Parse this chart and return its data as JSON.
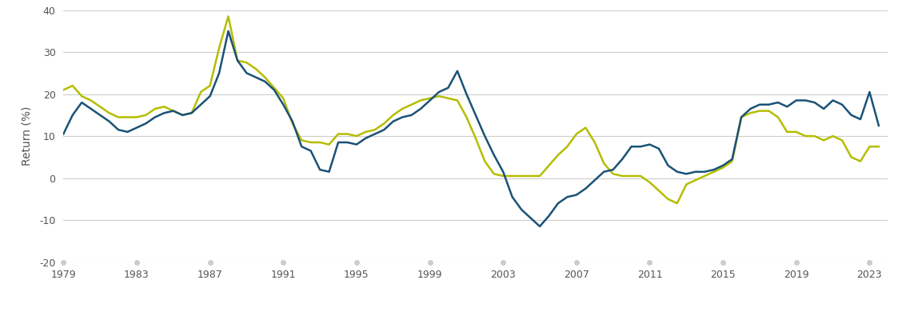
{
  "title": "",
  "ylabel": "Return (%)",
  "ylim": [
    -20,
    40
  ],
  "yticks": [
    -20,
    -10,
    0,
    10,
    20,
    30,
    40
  ],
  "xlim": [
    1979,
    2024
  ],
  "xticks": [
    1979,
    1983,
    1987,
    1991,
    1995,
    1999,
    2003,
    2007,
    2011,
    2015,
    2019,
    2023
  ],
  "growth_color": "#1a5276",
  "value_color": "#b5bd00",
  "background_color": "#ffffff",
  "grid_color": "#cccccc",
  "growth_x": [
    1979.0,
    1979.5,
    1980.0,
    1980.5,
    1981.0,
    1981.5,
    1982.0,
    1982.5,
    1983.0,
    1983.5,
    1984.0,
    1984.5,
    1985.0,
    1985.5,
    1986.0,
    1986.5,
    1987.0,
    1987.5,
    1988.0,
    1988.5,
    1989.0,
    1989.5,
    1990.0,
    1990.5,
    1991.0,
    1991.5,
    1992.0,
    1992.5,
    1993.0,
    1993.5,
    1994.0,
    1994.5,
    1995.0,
    1995.5,
    1996.0,
    1996.5,
    1997.0,
    1997.5,
    1998.0,
    1998.5,
    1999.0,
    1999.5,
    2000.0,
    2000.5,
    2001.0,
    2001.5,
    2002.0,
    2002.5,
    2003.0,
    2003.5,
    2004.0,
    2004.5,
    2005.0,
    2005.5,
    2006.0,
    2006.5,
    2007.0,
    2007.5,
    2008.0,
    2008.5,
    2009.0,
    2009.5,
    2010.0,
    2010.5,
    2011.0,
    2011.5,
    2012.0,
    2012.5,
    2013.0,
    2013.5,
    2014.0,
    2014.5,
    2015.0,
    2015.5,
    2016.0,
    2016.5,
    2017.0,
    2017.5,
    2018.0,
    2018.5,
    2019.0,
    2019.5,
    2020.0,
    2020.5,
    2021.0,
    2021.5,
    2022.0,
    2022.5,
    2023.0,
    2023.5
  ],
  "growth_y": [
    10.5,
    15.0,
    18.0,
    16.5,
    15.0,
    13.5,
    11.5,
    11.0,
    12.0,
    13.0,
    14.5,
    15.5,
    16.0,
    15.0,
    15.5,
    17.5,
    19.5,
    25.0,
    35.0,
    28.0,
    25.0,
    24.0,
    23.0,
    21.0,
    17.5,
    13.5,
    7.5,
    6.5,
    2.0,
    1.5,
    8.5,
    8.5,
    8.0,
    9.5,
    10.5,
    11.5,
    13.5,
    14.5,
    15.0,
    16.5,
    18.5,
    20.5,
    21.5,
    25.5,
    20.0,
    15.0,
    10.0,
    5.5,
    1.5,
    -4.5,
    -7.5,
    -9.5,
    -11.5,
    -9.0,
    -6.0,
    -4.5,
    -4.0,
    -2.5,
    -0.5,
    1.5,
    2.0,
    4.5,
    7.5,
    7.5,
    8.0,
    7.0,
    3.0,
    1.5,
    1.0,
    1.5,
    1.5,
    2.0,
    3.0,
    4.5,
    14.5,
    16.5,
    17.5,
    17.5,
    18.0,
    17.0,
    18.5,
    18.5,
    18.0,
    16.5,
    18.5,
    17.5,
    15.0,
    14.0,
    20.5,
    12.5
  ],
  "value_x": [
    1979.0,
    1979.5,
    1980.0,
    1980.5,
    1981.0,
    1981.5,
    1982.0,
    1982.5,
    1983.0,
    1983.5,
    1984.0,
    1984.5,
    1985.0,
    1985.5,
    1986.0,
    1986.5,
    1987.0,
    1987.5,
    1988.0,
    1988.5,
    1989.0,
    1989.5,
    1990.0,
    1990.5,
    1991.0,
    1991.5,
    1992.0,
    1992.5,
    1993.0,
    1993.5,
    1994.0,
    1994.5,
    1995.0,
    1995.5,
    1996.0,
    1996.5,
    1997.0,
    1997.5,
    1998.0,
    1998.5,
    1999.0,
    1999.5,
    2000.0,
    2000.5,
    2001.0,
    2001.5,
    2002.0,
    2002.5,
    2003.0,
    2003.5,
    2004.0,
    2004.5,
    2005.0,
    2005.5,
    2006.0,
    2006.5,
    2007.0,
    2007.5,
    2008.0,
    2008.5,
    2009.0,
    2009.5,
    2010.0,
    2010.5,
    2011.0,
    2011.5,
    2012.0,
    2012.5,
    2013.0,
    2013.5,
    2014.0,
    2014.5,
    2015.0,
    2015.5,
    2016.0,
    2016.5,
    2017.0,
    2017.5,
    2018.0,
    2018.5,
    2019.0,
    2019.5,
    2020.0,
    2020.5,
    2021.0,
    2021.5,
    2022.0,
    2022.5,
    2023.0,
    2023.5
  ],
  "value_y": [
    21.0,
    22.0,
    19.5,
    18.5,
    17.0,
    15.5,
    14.5,
    14.5,
    14.5,
    15.0,
    16.5,
    17.0,
    16.0,
    15.0,
    15.5,
    20.5,
    22.0,
    31.0,
    38.5,
    28.0,
    27.5,
    26.0,
    24.0,
    21.5,
    19.0,
    13.0,
    9.0,
    8.5,
    8.5,
    8.0,
    10.5,
    10.5,
    10.0,
    11.0,
    11.5,
    13.0,
    15.0,
    16.5,
    17.5,
    18.5,
    19.0,
    19.5,
    19.0,
    18.5,
    14.5,
    9.5,
    4.0,
    1.0,
    0.5,
    0.5,
    0.5,
    0.5,
    0.5,
    3.0,
    5.5,
    7.5,
    10.5,
    12.0,
    8.5,
    3.5,
    1.0,
    0.5,
    0.5,
    0.5,
    -1.0,
    -3.0,
    -5.0,
    -6.0,
    -1.5,
    -0.5,
    0.5,
    1.5,
    2.5,
    4.0,
    14.5,
    15.5,
    16.0,
    16.0,
    14.5,
    11.0,
    11.0,
    10.0,
    10.0,
    9.0,
    10.0,
    9.0,
    5.0,
    4.0,
    7.5,
    7.5
  ]
}
